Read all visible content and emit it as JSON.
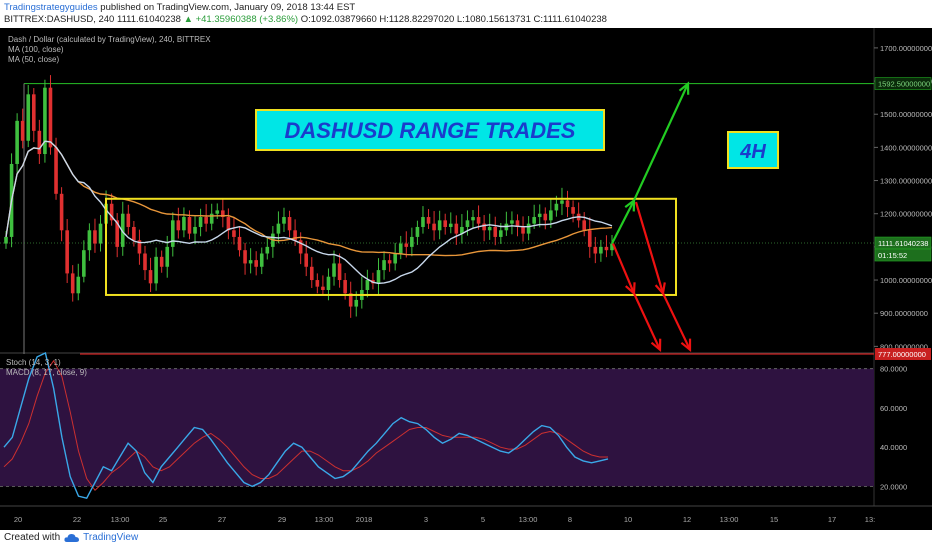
{
  "header": {
    "author": "Tradingstrategyguides",
    "published": "published on TradingView.com, January 09, 2018 13:44 EST",
    "symbol": "BITTREX:DASHUSD, 240",
    "last": "1111.61040238",
    "change": "▲ +41.35960388 (+3.86%)",
    "ohlc": "O:1092.03879660 H:1128.82297020 L:1080.15613731 C:1111.61040238"
  },
  "chart_data": {
    "type": "candlestick",
    "legend": [
      "Dash / Dollar (calculated by TradingView), 240, BITTREX",
      "MA (100, close)",
      "MA (50, close)"
    ],
    "title": "DASHUSD RANGE TRADES",
    "timeframe_label": "4H",
    "price_axis": {
      "ylim": [
        780,
        1760
      ],
      "ticks": [
        "1700.00000000",
        "1600.00000000",
        "1500.00000000",
        "1400.00000000",
        "1300.00000000",
        "1200.00000000",
        "1100.00000000",
        "1000.00000000",
        "900.00000000",
        "800.00000000"
      ],
      "tick_values": [
        1700,
        1600,
        1500,
        1400,
        1300,
        1200,
        1100,
        1000,
        900,
        800
      ]
    },
    "time_axis": {
      "ticks": [
        "20",
        "22",
        "13:00",
        "25",
        "27",
        "29",
        "13:00",
        "2018",
        "3",
        "5",
        "13:00",
        "8",
        "10",
        "12",
        "13:00",
        "15",
        "17",
        "13:"
      ]
    },
    "price_labels": {
      "target": "1592.50000000",
      "current": "1111.61040238",
      "countdown": "01:15:52",
      "low": "777.00000000"
    },
    "levels": {
      "target": 1592.5,
      "low": 777,
      "range_top": 1245,
      "range_bottom": 955
    },
    "closes": [
      1130,
      1350,
      1480,
      1420,
      1560,
      1450,
      1380,
      1580,
      1400,
      1260,
      1150,
      1020,
      960,
      1010,
      1090,
      1150,
      1110,
      1170,
      1230,
      1180,
      1100,
      1200,
      1160,
      1120,
      1080,
      1030,
      990,
      1070,
      1040,
      1100,
      1180,
      1150,
      1190,
      1140,
      1160,
      1190,
      1170,
      1200,
      1210,
      1190,
      1150,
      1130,
      1090,
      1050,
      1060,
      1040,
      1080,
      1100,
      1140,
      1170,
      1190,
      1150,
      1120,
      1080,
      1040,
      1000,
      980,
      970,
      1010,
      1050,
      1000,
      960,
      920,
      940,
      970,
      1000,
      990,
      1030,
      1060,
      1050,
      1080,
      1110,
      1100,
      1130,
      1160,
      1190,
      1170,
      1150,
      1180,
      1160,
      1170,
      1140,
      1160,
      1180,
      1190,
      1170,
      1150,
      1160,
      1130,
      1150,
      1170,
      1180,
      1160,
      1140,
      1170,
      1190,
      1200,
      1180,
      1210,
      1230,
      1240,
      1220,
      1200,
      1180,
      1150,
      1100,
      1080,
      1100,
      1090,
      1110
    ],
    "stoch": {
      "label": "Stoch (14, 3, 1)",
      "ylim": [
        10,
        88
      ],
      "ticks": [
        "80.0000",
        "60.0000",
        "40.0000",
        "20.0000"
      ],
      "tick_values": [
        80,
        60,
        40,
        20
      ],
      "k": [
        40,
        45,
        60,
        75,
        86,
        88,
        70,
        45,
        25,
        15,
        14,
        22,
        30,
        28,
        35,
        42,
        38,
        27,
        22,
        30,
        35,
        40,
        45,
        50,
        49,
        44,
        38,
        32,
        27,
        22,
        20,
        22,
        26,
        32,
        38,
        42,
        40,
        35,
        30,
        27,
        24,
        25,
        28,
        33,
        38,
        42,
        47,
        52,
        55,
        53,
        52,
        49,
        45,
        42,
        44,
        47,
        46,
        44,
        42,
        40,
        38,
        37,
        40,
        44,
        48,
        51,
        50,
        46,
        40,
        35,
        33,
        32,
        33,
        34
      ],
      "d": [
        30,
        34,
        42,
        52,
        66,
        78,
        84,
        76,
        58,
        38,
        24,
        18,
        22,
        27,
        30,
        34,
        38,
        35,
        30,
        28,
        30,
        34,
        38,
        42,
        45,
        47,
        44,
        40,
        35,
        30,
        26,
        24,
        24,
        26,
        30,
        34,
        38,
        38,
        36,
        33,
        30,
        28,
        28,
        30,
        33,
        37,
        40,
        43,
        46,
        49,
        50,
        50,
        48,
        46,
        45,
        45,
        45,
        45,
        44,
        42,
        40,
        39,
        39,
        41,
        44,
        47,
        48,
        47,
        44,
        41,
        38,
        36,
        35,
        35
      ]
    },
    "macd_label": "MACD (8, 17, close, 9)"
  },
  "footer": {
    "created_with": "Created with",
    "brand": "TradingView"
  },
  "colors": {
    "background": "#000000",
    "up": "#3fbf3f",
    "down": "#e03030",
    "ma100": "#e8963a",
    "ma50": "#c8d8ec",
    "range_box": "#f0e020",
    "arrow_up": "#22cc22",
    "arrow_down": "#ee1111",
    "target_line": "#22aa22",
    "low_line": "#cc2222",
    "title_bg": "#00e6e6",
    "title_text": "#1a3ccc",
    "stoch_bg": "#2e1240",
    "stoch_k": "#3aa8e8",
    "stoch_d": "#cc3030"
  }
}
